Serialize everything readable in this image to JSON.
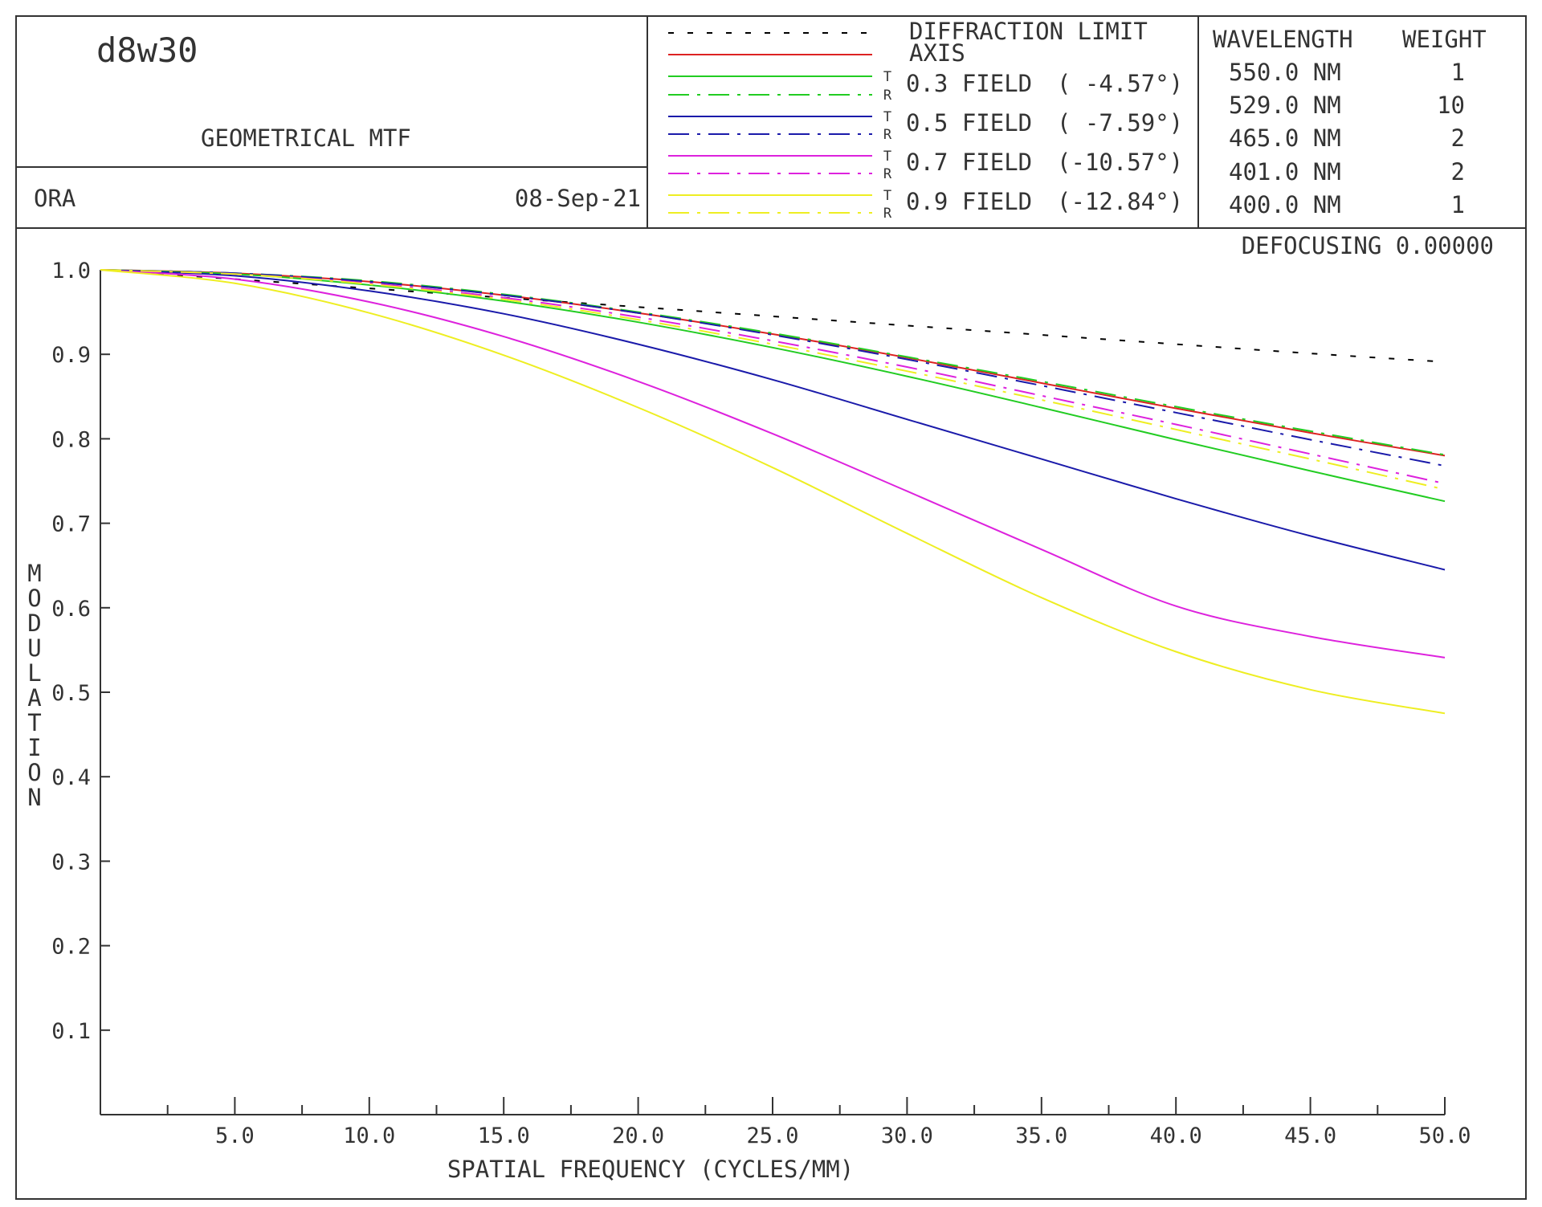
{
  "header": {
    "lens_name": "d8w30",
    "plot_title": "GEOMETRICAL MTF",
    "program": "ORA",
    "date": "08-Sep-21",
    "defocusing_label": "DEFOCUSING",
    "defocusing_value": "0.00000"
  },
  "legend": {
    "diffraction_label": "DIFFRACTION LIMIT",
    "axis_label": "AXIS",
    "tangential_mark": "T",
    "radial_mark": "R",
    "fields": [
      {
        "label": "0.3 FIELD",
        "angle": "( -4.57°)",
        "color": "#22cc22"
      },
      {
        "label": "0.5 FIELD",
        "angle": "( -7.59°)",
        "color": "#1a1aaa"
      },
      {
        "label": "0.7 FIELD",
        "angle": "(-10.57°)",
        "color": "#dd22dd"
      },
      {
        "label": "0.9 FIELD",
        "angle": "(-12.84°)",
        "color": "#eeee22"
      }
    ]
  },
  "wavelengths": {
    "header_wavelength": "WAVELENGTH",
    "header_weight": "WEIGHT",
    "rows": [
      {
        "wavelength": "550.0 NM",
        "weight": "1"
      },
      {
        "wavelength": "529.0 NM",
        "weight": "10"
      },
      {
        "wavelength": "465.0 NM",
        "weight": "2"
      },
      {
        "wavelength": "401.0 NM",
        "weight": "2"
      },
      {
        "wavelength": "400.0 NM",
        "weight": "1"
      }
    ]
  },
  "chart_data": {
    "type": "line",
    "xlabel": "SPATIAL FREQUENCY (CYCLES/MM)",
    "ylabel": "MODULATION",
    "xlim": [
      0,
      50
    ],
    "ylim": [
      0,
      1
    ],
    "x_ticks": [
      "5.0",
      "10.0",
      "15.0",
      "20.0",
      "25.0",
      "30.0",
      "35.0",
      "40.0",
      "45.0",
      "50.0"
    ],
    "y_ticks": [
      "0.1",
      "0.2",
      "0.3",
      "0.4",
      "0.5",
      "0.6",
      "0.7",
      "0.8",
      "0.9",
      "1.0"
    ],
    "grid": false,
    "x": [
      0,
      5,
      10,
      15,
      20,
      25,
      30,
      35,
      40,
      45,
      50
    ],
    "series": [
      {
        "name": "DIFFRACTION LIMIT",
        "color": "#000000",
        "style": "dotted",
        "values": [
          1.0,
          0.989,
          0.978,
          0.967,
          0.956,
          0.945,
          0.934,
          0.923,
          0.912,
          0.901,
          0.891
        ]
      },
      {
        "name": "AXIS",
        "color": "#dd2222",
        "style": "solid",
        "values": [
          1.0,
          0.996,
          0.986,
          0.97,
          0.949,
          0.924,
          0.896,
          0.866,
          0.836,
          0.807,
          0.78
        ]
      },
      {
        "name": "0.3 FIELD T",
        "color": "#22cc22",
        "style": "solid",
        "values": [
          1.0,
          0.995,
          0.982,
          0.963,
          0.938,
          0.908,
          0.874,
          0.837,
          0.799,
          0.762,
          0.726
        ]
      },
      {
        "name": "0.3 FIELD R",
        "color": "#22cc22",
        "style": "dashdot",
        "values": [
          1.0,
          0.996,
          0.987,
          0.971,
          0.95,
          0.925,
          0.897,
          0.868,
          0.838,
          0.809,
          0.781
        ]
      },
      {
        "name": "0.5 FIELD T",
        "color": "#1a1aaa",
        "style": "solid",
        "values": [
          1.0,
          0.993,
          0.975,
          0.948,
          0.912,
          0.87,
          0.823,
          0.776,
          0.729,
          0.685,
          0.645
        ]
      },
      {
        "name": "0.5 FIELD R",
        "color": "#1a1aaa",
        "style": "dashdot",
        "values": [
          1.0,
          0.996,
          0.986,
          0.97,
          0.949,
          0.923,
          0.894,
          0.863,
          0.831,
          0.799,
          0.768
        ]
      },
      {
        "name": "0.7 FIELD T",
        "color": "#dd22dd",
        "style": "solid",
        "values": [
          1.0,
          0.989,
          0.962,
          0.921,
          0.868,
          0.806,
          0.738,
          0.669,
          0.602,
          0.566,
          0.541
        ]
      },
      {
        "name": "0.7 FIELD R",
        "color": "#dd22dd",
        "style": "dashdot",
        "values": [
          1.0,
          0.995,
          0.984,
          0.967,
          0.944,
          0.916,
          0.885,
          0.851,
          0.817,
          0.782,
          0.747
        ]
      },
      {
        "name": "0.9 FIELD T",
        "color": "#eeee22",
        "style": "solid",
        "values": [
          1.0,
          0.984,
          0.949,
          0.899,
          0.837,
          0.766,
          0.688,
          0.612,
          0.548,
          0.503,
          0.475
        ]
      },
      {
        "name": "0.9 FIELD R",
        "color": "#eeee22",
        "style": "dashdot",
        "values": [
          1.0,
          0.995,
          0.983,
          0.965,
          0.941,
          0.912,
          0.88,
          0.846,
          0.811,
          0.776,
          0.74
        ]
      }
    ]
  }
}
